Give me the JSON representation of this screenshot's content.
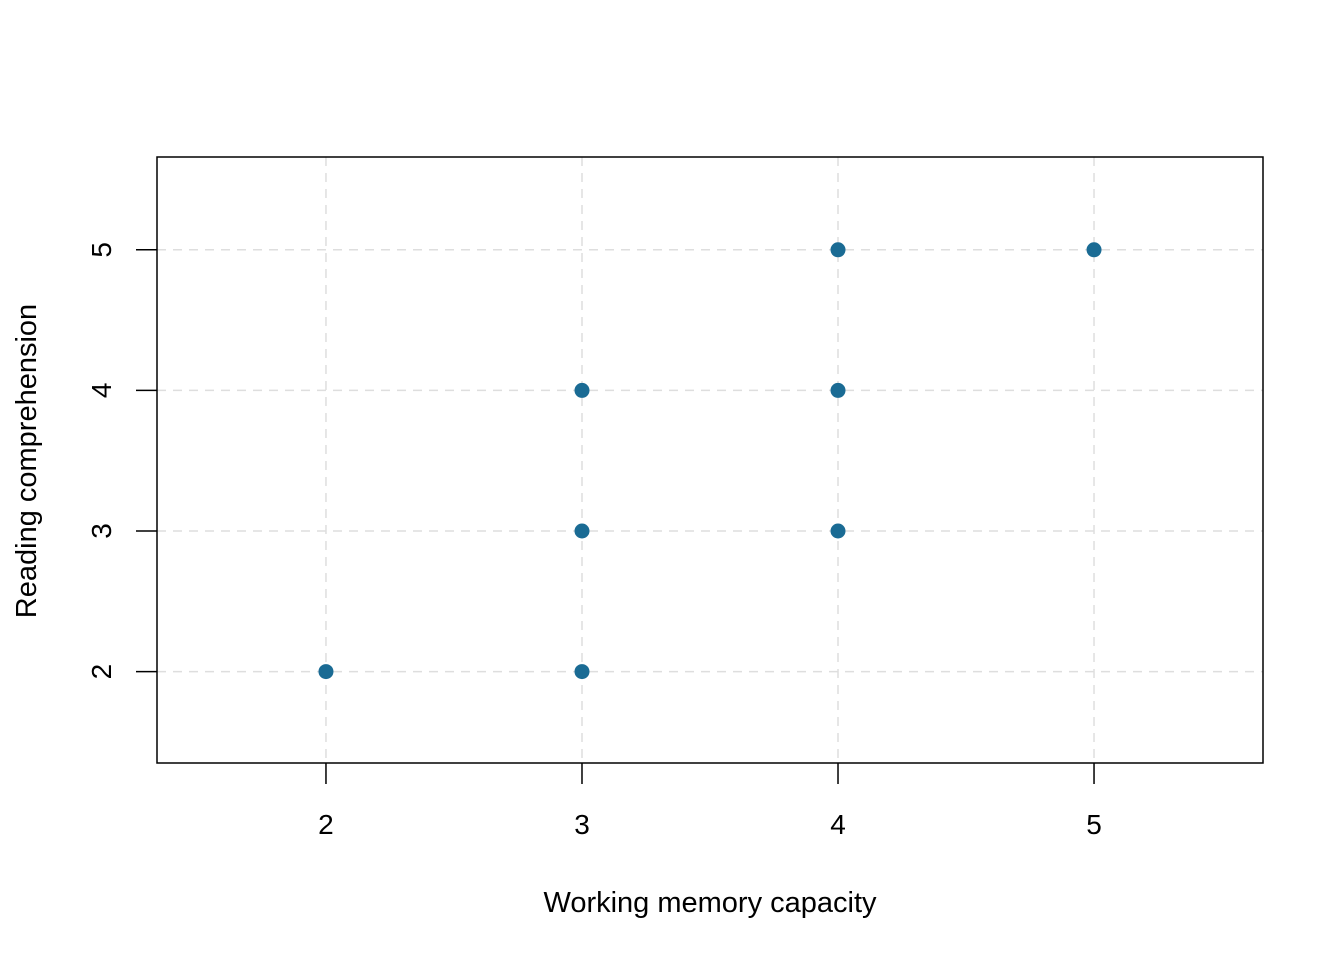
{
  "chart_data": {
    "type": "scatter",
    "title": "",
    "xlabel": "Working memory capacity",
    "ylabel": "Reading comprehension",
    "xlim": [
      1.34,
      5.66
    ],
    "ylim": [
      1.35,
      5.66
    ],
    "x_ticks": [
      2,
      3,
      4,
      5
    ],
    "y_ticks": [
      2,
      3,
      4,
      5
    ],
    "x_tick_labels": [
      "2",
      "3",
      "4",
      "5"
    ],
    "y_tick_labels": [
      "2",
      "3",
      "4",
      "5"
    ],
    "grid": true,
    "legend": "none",
    "point_color": "#1a6b94",
    "points": [
      {
        "x": 2,
        "y": 2
      },
      {
        "x": 3,
        "y": 2
      },
      {
        "x": 3,
        "y": 3
      },
      {
        "x": 3,
        "y": 4
      },
      {
        "x": 4,
        "y": 3
      },
      {
        "x": 4,
        "y": 4
      },
      {
        "x": 4,
        "y": 5
      },
      {
        "x": 5,
        "y": 5
      }
    ]
  }
}
